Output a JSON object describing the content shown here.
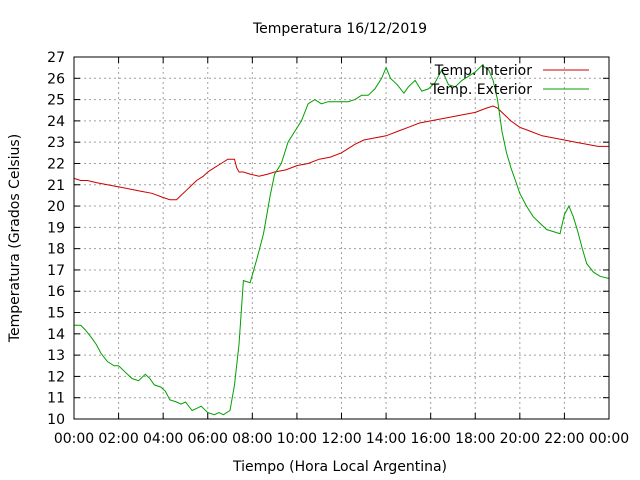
{
  "chart_data": {
    "type": "line",
    "title": "Temperatura 16/12/2019",
    "xlabel": "Tiempo (Hora Local Argentina)",
    "ylabel": "Temperatura (Grados Celsius)",
    "xlim": [
      0,
      24
    ],
    "ylim": [
      10,
      27
    ],
    "grid": true,
    "legend_position": "top-right",
    "x_ticks": [
      "00:00",
      "02:00",
      "04:00",
      "06:00",
      "08:00",
      "10:00",
      "12:00",
      "14:00",
      "16:00",
      "18:00",
      "20:00",
      "22:00",
      "00:00"
    ],
    "y_ticks": [
      "10",
      "11",
      "12",
      "13",
      "14",
      "15",
      "16",
      "17",
      "18",
      "19",
      "20",
      "21",
      "22",
      "23",
      "24",
      "25",
      "26",
      "27"
    ],
    "series": [
      {
        "name": "Temp. Interior",
        "color": "#cc0000",
        "x": [
          0,
          0.3,
          0.6,
          1.0,
          1.5,
          2.0,
          2.5,
          3.0,
          3.5,
          4.0,
          4.3,
          4.6,
          4.8,
          5.0,
          5.2,
          5.5,
          5.8,
          6.0,
          6.3,
          6.6,
          6.9,
          7.2,
          7.3,
          7.4,
          7.6,
          7.9,
          8.3,
          8.7,
          9.0,
          9.5,
          10.0,
          10.5,
          11.0,
          11.5,
          12.0,
          12.3,
          12.6,
          13.0,
          13.5,
          14.0,
          14.5,
          15.0,
          15.5,
          16.0,
          16.5,
          17.0,
          17.5,
          18.0,
          18.5,
          18.8,
          19.0,
          19.3,
          19.6,
          20.0,
          20.5,
          21.0,
          21.5,
          22.0,
          22.5,
          23.0,
          23.5,
          24.0
        ],
        "values": [
          21.3,
          21.2,
          21.2,
          21.1,
          21.0,
          20.9,
          20.8,
          20.7,
          20.6,
          20.4,
          20.3,
          20.3,
          20.5,
          20.7,
          20.9,
          21.2,
          21.4,
          21.6,
          21.8,
          22.0,
          22.2,
          22.2,
          21.8,
          21.6,
          21.6,
          21.5,
          21.4,
          21.5,
          21.6,
          21.7,
          21.9,
          22.0,
          22.2,
          22.3,
          22.5,
          22.7,
          22.9,
          23.1,
          23.2,
          23.3,
          23.5,
          23.7,
          23.9,
          24.0,
          24.1,
          24.2,
          24.3,
          24.4,
          24.6,
          24.7,
          24.6,
          24.3,
          24.0,
          23.7,
          23.5,
          23.3,
          23.2,
          23.1,
          23.0,
          22.9,
          22.8,
          22.8
        ]
      },
      {
        "name": "Temp. Exterior",
        "color": "#00a000",
        "x": [
          0,
          0.3,
          0.5,
          0.8,
          1.0,
          1.2,
          1.5,
          1.8,
          2.0,
          2.3,
          2.6,
          2.9,
          3.2,
          3.4,
          3.6,
          3.9,
          4.1,
          4.3,
          4.6,
          4.8,
          5.0,
          5.3,
          5.5,
          5.7,
          6.0,
          6.3,
          6.5,
          6.7,
          7.0,
          7.2,
          7.4,
          7.6,
          7.9,
          8.2,
          8.5,
          8.8,
          9.0,
          9.3,
          9.6,
          9.9,
          10.2,
          10.5,
          10.8,
          11.1,
          11.4,
          11.7,
          12.0,
          12.3,
          12.6,
          12.9,
          13.2,
          13.5,
          13.8,
          14.0,
          14.2,
          14.5,
          14.8,
          15.0,
          15.3,
          15.6,
          15.9,
          16.2,
          16.5,
          16.8,
          17.1,
          17.4,
          17.7,
          18.0,
          18.3,
          18.6,
          18.8,
          19.0,
          19.2,
          19.4,
          19.6,
          19.8,
          20.0,
          20.3,
          20.6,
          20.9,
          21.2,
          21.5,
          21.8,
          22.0,
          22.2,
          22.4,
          22.6,
          22.8,
          23.0,
          23.3,
          23.6,
          24.0
        ],
        "values": [
          14.4,
          14.4,
          14.2,
          13.8,
          13.5,
          13.1,
          12.7,
          12.5,
          12.5,
          12.2,
          11.9,
          11.8,
          12.1,
          11.9,
          11.6,
          11.5,
          11.3,
          10.9,
          10.8,
          10.7,
          10.8,
          10.4,
          10.5,
          10.6,
          10.3,
          10.2,
          10.3,
          10.2,
          10.4,
          11.6,
          13.5,
          16.5,
          16.4,
          17.5,
          18.7,
          20.5,
          21.5,
          22.0,
          23.0,
          23.5,
          24.0,
          24.8,
          25.0,
          24.8,
          24.9,
          24.9,
          24.9,
          24.9,
          25.0,
          25.2,
          25.2,
          25.5,
          26.0,
          26.5,
          26.0,
          25.7,
          25.3,
          25.6,
          25.9,
          25.4,
          25.5,
          25.8,
          26.4,
          25.7,
          25.6,
          25.9,
          26.1,
          26.3,
          26.6,
          26.4,
          25.9,
          25.0,
          23.5,
          22.5,
          21.8,
          21.2,
          20.6,
          20.0,
          19.5,
          19.2,
          18.9,
          18.8,
          18.7,
          19.6,
          20.0,
          19.5,
          18.8,
          18.0,
          17.3,
          16.9,
          16.7,
          16.6
        ]
      }
    ]
  }
}
